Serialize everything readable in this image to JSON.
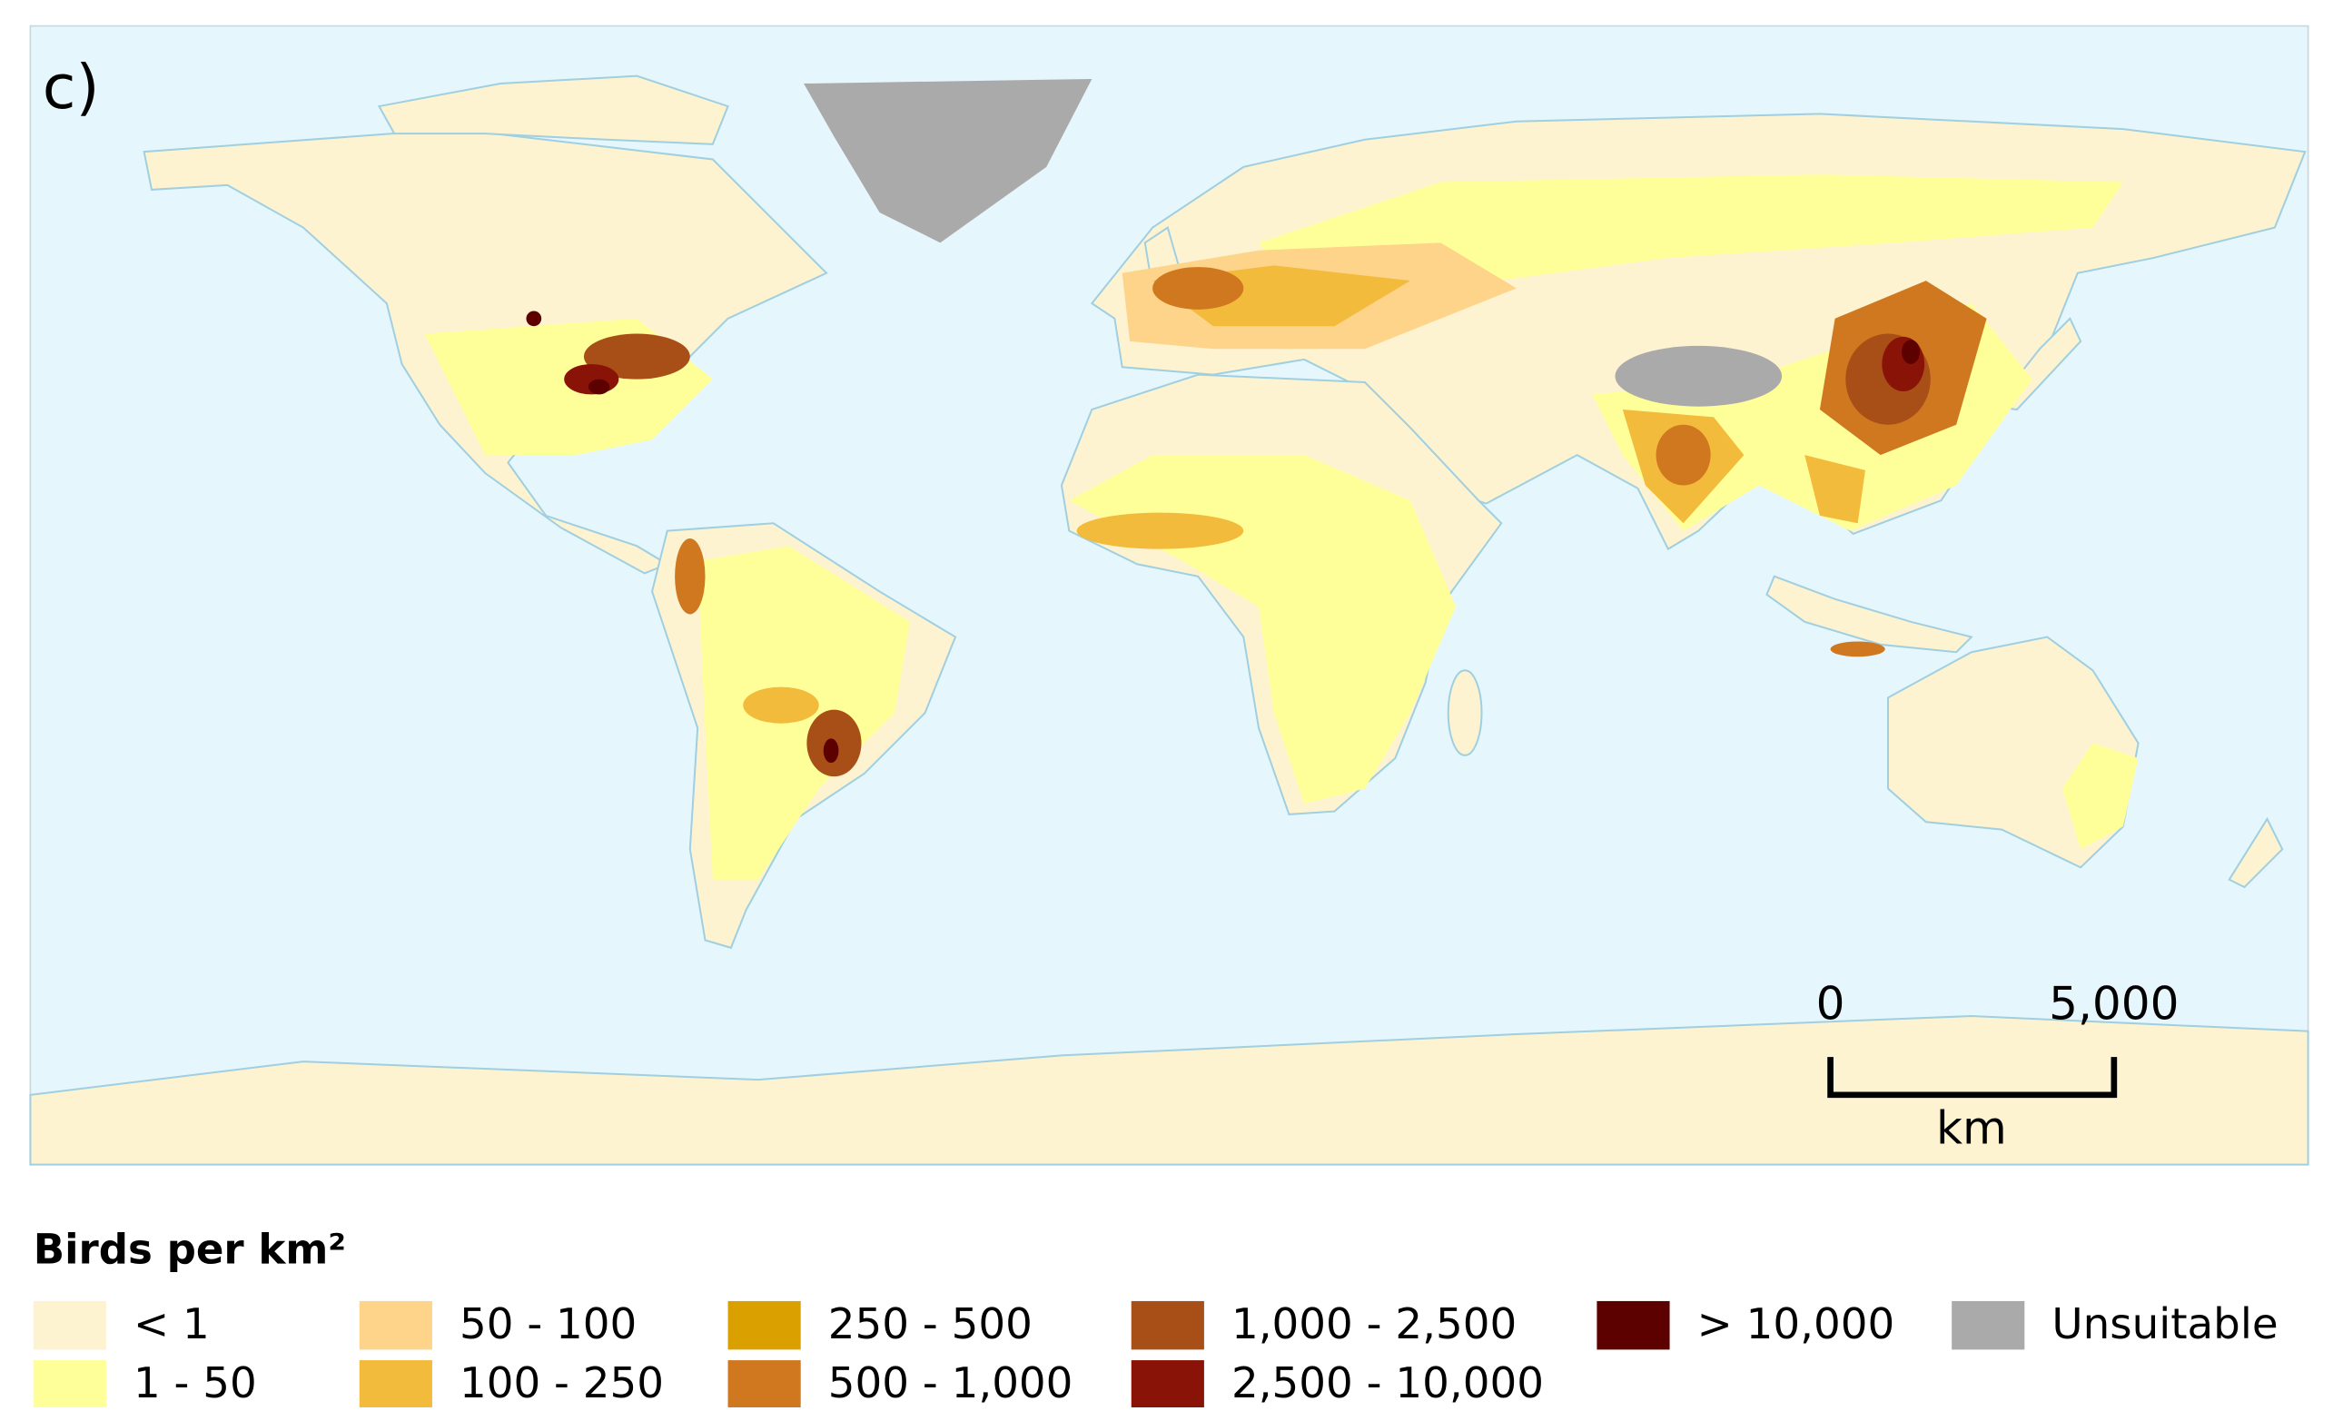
{
  "panel_label": "c)",
  "scale_bar": {
    "ticks": [
      "0",
      "5,000"
    ],
    "unit": "km"
  },
  "legend": {
    "title": "Birds per km²",
    "items": [
      {
        "label": "< 1",
        "color": "#fdf3d1"
      },
      {
        "label": "1 - 50",
        "color": "#ffff99"
      },
      {
        "label": "50 - 100",
        "color": "#fdd48a"
      },
      {
        "label": "100 - 250",
        "color": "#f3bb3c"
      },
      {
        "label": "250 - 500",
        "color": "#d9a000"
      },
      {
        "label": "500 - 1,000",
        "color": "#d07820"
      },
      {
        "label": "1,000 - 2,500",
        "color": "#a84f18"
      },
      {
        "label": "2,500 - 10,000",
        "color": "#8a1308"
      },
      {
        "label": "> 10,000",
        "color": "#5c0000"
      },
      {
        "label": "Unsuitable",
        "color": "#aaaaaa"
      }
    ]
  }
}
